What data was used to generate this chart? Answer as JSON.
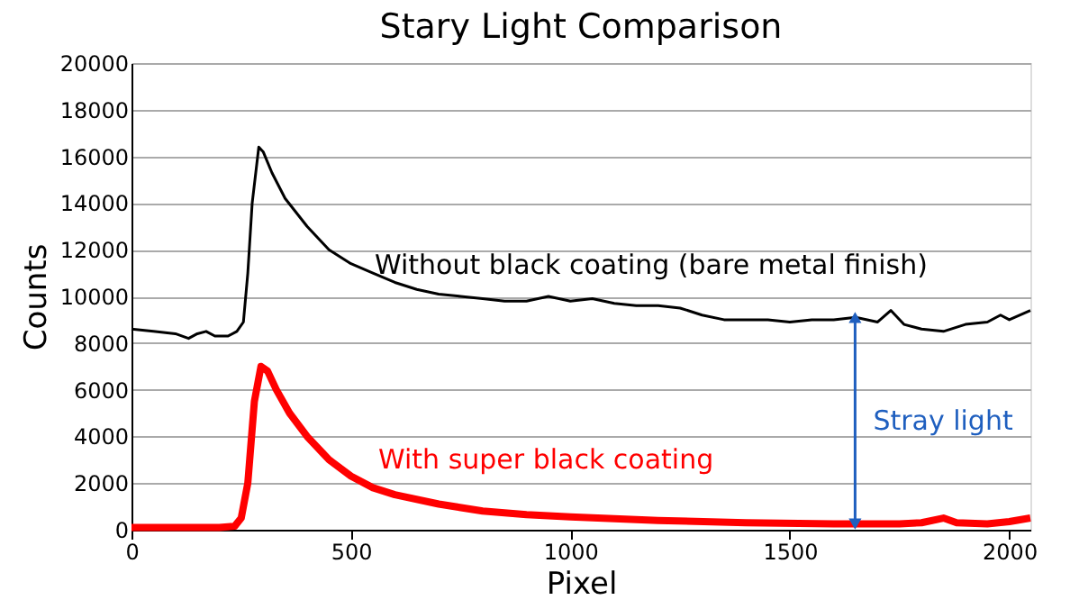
{
  "chart_data": {
    "type": "line",
    "title": "Stary Light Comparison",
    "xlabel": "Pixel",
    "ylabel": "Counts",
    "xlim": [
      0,
      2048
    ],
    "xticks": [
      0,
      500,
      1000,
      1500,
      2000
    ],
    "ylim": [
      0,
      20000
    ],
    "yticks": [
      0,
      2000,
      4000,
      6000,
      8000,
      10000,
      12000,
      14000,
      16000,
      18000,
      20000
    ],
    "grid": "y",
    "legend": false,
    "marker": "none",
    "line_style": "solid",
    "series": [
      {
        "name": "Without black coating (bare metal finish)",
        "color": "#000000",
        "x": [
          0,
          50,
          100,
          130,
          150,
          170,
          190,
          220,
          240,
          255,
          265,
          275,
          290,
          300,
          320,
          350,
          400,
          450,
          500,
          550,
          600,
          650,
          700,
          750,
          800,
          850,
          900,
          950,
          1000,
          1050,
          1100,
          1150,
          1200,
          1250,
          1300,
          1350,
          1400,
          1450,
          1500,
          1550,
          1600,
          1650,
          1700,
          1730,
          1760,
          1800,
          1850,
          1900,
          1950,
          1980,
          2000,
          2048
        ],
        "values": [
          8600,
          8500,
          8400,
          8200,
          8400,
          8500,
          8300,
          8300,
          8500,
          8900,
          11000,
          14000,
          16400,
          16200,
          15300,
          14200,
          13000,
          12000,
          11400,
          11000,
          10600,
          10300,
          10100,
          10000,
          9900,
          9800,
          9800,
          10000,
          9800,
          9900,
          9700,
          9600,
          9600,
          9500,
          9200,
          9000,
          9000,
          9000,
          8900,
          9000,
          9000,
          9100,
          8900,
          9400,
          8800,
          8600,
          8500,
          8800,
          8900,
          9200,
          9000,
          9400
        ]
      },
      {
        "name": "With super black coating",
        "color": "#ff0000",
        "x": [
          0,
          100,
          200,
          235,
          250,
          265,
          280,
          295,
          310,
          330,
          360,
          400,
          450,
          500,
          550,
          600,
          700,
          800,
          900,
          1000,
          1200,
          1400,
          1600,
          1750,
          1800,
          1850,
          1880,
          1950,
          2000,
          2048
        ],
        "values": [
          100,
          100,
          100,
          150,
          500,
          2000,
          5500,
          7000,
          6800,
          6000,
          5000,
          4000,
          3000,
          2300,
          1800,
          1500,
          1100,
          800,
          650,
          550,
          400,
          300,
          250,
          250,
          300,
          500,
          300,
          250,
          350,
          500
        ]
      }
    ],
    "annotations": [
      "Stray light"
    ]
  }
}
